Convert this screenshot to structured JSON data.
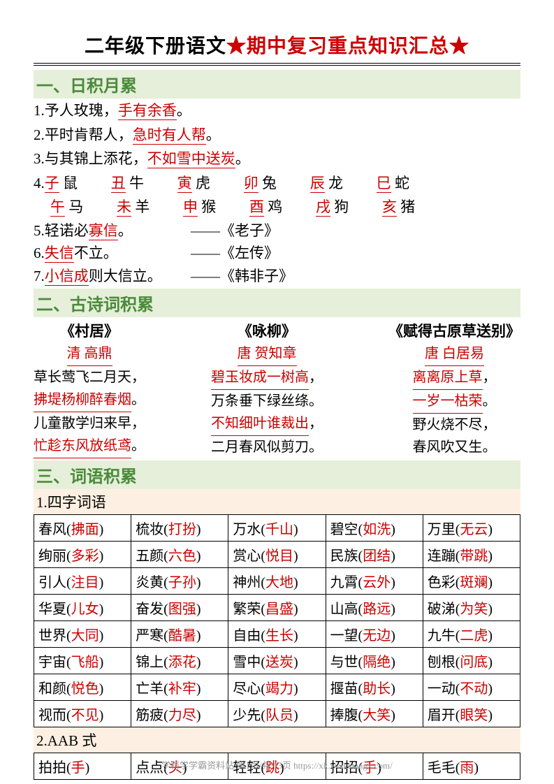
{
  "title": {
    "black": "二年级下册语文",
    "red": "期中复习重点知识汇总",
    "star": "★"
  },
  "sections": {
    "s1": {
      "header": "一、日积月累"
    },
    "s2": {
      "header": "二、古诗词积累"
    },
    "s3": {
      "header": "三、词语积累"
    }
  },
  "idioms": {
    "l1a": "1.予人玫瑰，",
    "l1b": "手有余香",
    "l1c": "。",
    "l2a": "2.平时肯帮人，",
    "l2b": "急时有人帮",
    "l2c": "。",
    "l3a": "3.与其锦上添花，",
    "l3b": "不如雪中送炭",
    "l3c": "。",
    "l5a": "5.轻诺必",
    "l5b": "寡信",
    "l5c": "。",
    "l5s": "——《老子》",
    "l6a": "6.",
    "l6b": "失信",
    "l6c": "不立。",
    "l6s": "——《左传》",
    "l7a": "7.",
    "l7b": "小信成",
    "l7c": "则大信立。",
    "l7s": "——《韩非子》"
  },
  "zodiac": {
    "prefix": "4.",
    "row1": [
      {
        "r": "子",
        "b": "鼠"
      },
      {
        "r": "丑",
        "b": "牛"
      },
      {
        "r": "寅",
        "b": "虎"
      },
      {
        "r": "卯",
        "b": "兔"
      },
      {
        "r": "辰",
        "b": "龙"
      },
      {
        "r": "巳",
        "b": "蛇"
      }
    ],
    "row2": [
      {
        "r": "午",
        "b": "马"
      },
      {
        "r": "未",
        "b": "羊"
      },
      {
        "r": "申",
        "b": "猴"
      },
      {
        "r": "酉",
        "b": "鸡"
      },
      {
        "r": "戌",
        "b": "狗"
      },
      {
        "r": "亥",
        "b": "猪"
      }
    ]
  },
  "poems": [
    {
      "title": "《村居》",
      "author": "清 高鼎",
      "lines": [
        {
          "t": "草长莺飞二月天，",
          "red": false
        },
        {
          "t": "拂堤杨柳醉春烟",
          "red": true,
          "p": "。"
        },
        {
          "t": "儿童散学归来早，",
          "red": false
        },
        {
          "t": "忙趁东风放纸鸢",
          "red": true,
          "p": "。"
        }
      ]
    },
    {
      "title": "《咏柳》",
      "author": "唐 贺知章",
      "lines": [
        {
          "t": "碧玉妆成一树高",
          "red": true,
          "p": "，"
        },
        {
          "t": "万条垂下绿丝绦。",
          "red": false
        },
        {
          "t": "不知细叶谁裁出",
          "red": true,
          "p": "，"
        },
        {
          "t": "二月春风似剪刀。",
          "red": false
        }
      ]
    },
    {
      "title": "《赋得古原草送别》",
      "author": "唐 白居易",
      "lines": [
        {
          "t": "离离原上草",
          "red": true,
          "p": "，"
        },
        {
          "t": "一岁一枯荣",
          "red": true,
          "p": "。"
        },
        {
          "t": "野火烧不尽，",
          "red": false
        },
        {
          "t": "春风吹又生。",
          "red": false
        }
      ]
    }
  ],
  "word_sub1": "1.四字词语",
  "word_sub2": "2.AAB 式",
  "words": [
    [
      {
        "b": "春风",
        "r": "拂面"
      },
      {
        "b": "梳妆",
        "r": "打扮"
      },
      {
        "b": "万水",
        "r": "千山"
      },
      {
        "b": "碧空",
        "r": "如洗"
      },
      {
        "b": "万里",
        "r": "无云"
      }
    ],
    [
      {
        "b": "绚丽",
        "r": "多彩"
      },
      {
        "b": "五颜",
        "r": "六色"
      },
      {
        "b": "赏心",
        "r": "悦目"
      },
      {
        "b": "民族",
        "r": "团结"
      },
      {
        "b": "连蹦",
        "r": "带跳"
      }
    ],
    [
      {
        "b": "引人",
        "r": "注目"
      },
      {
        "b": "炎黄",
        "r": "子孙"
      },
      {
        "b": "神州",
        "r": "大地"
      },
      {
        "b": "九霄",
        "r": "云外"
      },
      {
        "b": "色彩",
        "r": "斑斓"
      }
    ],
    [
      {
        "b": "华夏",
        "r": "儿女"
      },
      {
        "b": "奋发",
        "r": "图强"
      },
      {
        "b": "繁荣",
        "r": "昌盛"
      },
      {
        "b": "山高",
        "r": "路远"
      },
      {
        "b": "破涕",
        "r": "为笑"
      }
    ],
    [
      {
        "b": "世界",
        "r": "大同"
      },
      {
        "b": "严寒",
        "r": "酷暑"
      },
      {
        "b": "自由",
        "r": "生长"
      },
      {
        "b": "一望",
        "r": "无边"
      },
      {
        "b": "九牛",
        "r": "二虎"
      }
    ],
    [
      {
        "b": "宇宙",
        "r": "飞船"
      },
      {
        "b": "锦上",
        "r": "添花"
      },
      {
        "b": "雪中",
        "r": "送炭"
      },
      {
        "b": "与世",
        "r": "隔绝"
      },
      {
        "b": "刨根",
        "r": "问底"
      }
    ],
    [
      {
        "b": "和颜",
        "r": "悦色"
      },
      {
        "b": "亡羊",
        "r": "补牢"
      },
      {
        "b": "尽心",
        "r": "竭力"
      },
      {
        "b": "揠苗",
        "r": "助长"
      },
      {
        "b": "一动",
        "r": "不动"
      }
    ],
    [
      {
        "b": "视而",
        "r": "不见"
      },
      {
        "b": "筋疲",
        "r": "力尽"
      },
      {
        "b": "少先",
        "r": "队员"
      },
      {
        "b": "捧腹",
        "r": "大笑"
      },
      {
        "b": "眉开",
        "r": "眼笑"
      }
    ]
  ],
  "aab": [
    [
      {
        "b": "拍拍",
        "r": "手"
      },
      {
        "b": "点点",
        "r": "头"
      },
      {
        "b": "轻轻",
        "r": "跳"
      },
      {
        "b": "招招",
        "r": "手"
      },
      {
        "b": "毛毛",
        "r": "雨"
      }
    ]
  ],
  "footer": "学科学学霸资料站 第1页/共 13页 https://xk.weiketangx.com/"
}
